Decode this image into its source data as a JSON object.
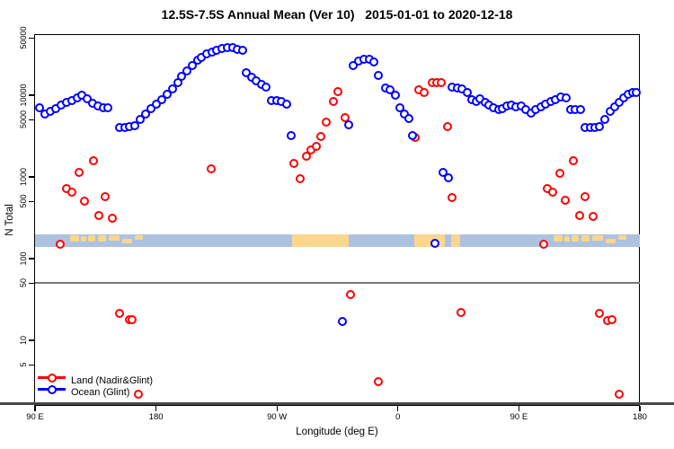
{
  "title": "12.5S-7.5S Annual Mean (Ver 10)   2015-01-01 to 2020-12-18",
  "legend": {
    "items": [
      {
        "label": "Land (Nadir&Glint)",
        "color": "#ff0000"
      },
      {
        "label": "Ocean (Glint)",
        "color": "#0000ff"
      }
    ]
  },
  "chart_data": {
    "type": "scatter",
    "title": "12.5S-7.5S Annual Mean (Ver 10)   2015-01-01 to 2020-12-18",
    "x_axis": {
      "label": "Longitude (deg E)",
      "scale": "linear",
      "range": [
        0,
        450
      ],
      "ticks": [
        {
          "pos": 0,
          "label": "90 E"
        },
        {
          "pos": 90,
          "label": "180"
        },
        {
          "pos": 180,
          "label": "90 W"
        },
        {
          "pos": 270,
          "label": "0"
        },
        {
          "pos": 360,
          "label": "90 E"
        },
        {
          "pos": 450,
          "label": "180"
        }
      ]
    },
    "y_axis": {
      "label": "N Total",
      "scale": "log10",
      "range": [
        1.55,
        55000
      ],
      "ticks": [
        {
          "value": 50000,
          "label": "50000"
        },
        {
          "value": 10000,
          "label": "10000"
        },
        {
          "value": 5000,
          "label": "5000"
        },
        {
          "value": 1000,
          "label": "1000"
        },
        {
          "value": 500,
          "label": "500"
        },
        {
          "value": 100,
          "label": "100"
        },
        {
          "value": 50,
          "label": "50"
        },
        {
          "value": 10,
          "label": "10"
        },
        {
          "value": 5,
          "label": "5"
        }
      ]
    },
    "reference_lines": [
      {
        "value": 50,
        "color": "#787878",
        "width": 2,
        "full_canvas": false
      },
      {
        "value": 1.66,
        "color": "#474747",
        "width": 3,
        "full_canvas": true
      }
    ],
    "map_band": {
      "top_value": 198,
      "bottom_value": 139,
      "ocean_color": "#adc2e0",
      "land_color": "#fbd68c",
      "land_segments": [
        {
          "from": 26.1,
          "to": 32.8,
          "h": 0.5,
          "dy": 0.08
        },
        {
          "from": 34.1,
          "to": 38.1,
          "h": 0.45,
          "dy": 0.12
        },
        {
          "from": 39.5,
          "to": 44.8,
          "h": 0.5,
          "dy": 0.05
        },
        {
          "from": 46.8,
          "to": 52.8,
          "h": 0.5,
          "dy": 0.1
        },
        {
          "from": 54.8,
          "to": 62.9,
          "h": 0.45,
          "dy": 0.08
        },
        {
          "from": 64.9,
          "to": 72.2,
          "h": 0.4,
          "dy": 0.35
        },
        {
          "from": 74.2,
          "to": 80.2,
          "h": 0.35,
          "dy": 0.1
        },
        {
          "from": 191.3,
          "to": 233.3,
          "h": 1,
          "dy": 0
        },
        {
          "from": 282.0,
          "to": 304.7,
          "h": 1,
          "dy": 0
        },
        {
          "from": 309.3,
          "to": 316.0,
          "h": 1,
          "dy": 0
        },
        {
          "from": 386.1,
          "to": 392.8,
          "h": 0.5,
          "dy": 0.08
        },
        {
          "from": 394.1,
          "to": 398.1,
          "h": 0.45,
          "dy": 0.12
        },
        {
          "from": 399.5,
          "to": 404.8,
          "h": 0.5,
          "dy": 0.05
        },
        {
          "from": 406.8,
          "to": 412.8,
          "h": 0.5,
          "dy": 0.1
        },
        {
          "from": 414.8,
          "to": 422.9,
          "h": 0.45,
          "dy": 0.08
        },
        {
          "from": 424.9,
          "to": 432.2,
          "h": 0.4,
          "dy": 0.35
        },
        {
          "from": 434.2,
          "to": 440.2,
          "h": 0.35,
          "dy": 0.1
        }
      ]
    },
    "series": [
      {
        "name": "Land (Nadir&Glint)",
        "color": "#ff0000",
        "marker": "open-circle",
        "points": [
          [
            18.7,
            151
          ],
          [
            23.3,
            720
          ],
          [
            27.3,
            650
          ],
          [
            32.7,
            1140
          ],
          [
            36.7,
            500
          ],
          [
            43.3,
            1590
          ],
          [
            47.3,
            340
          ],
          [
            52,
            570
          ],
          [
            57.3,
            316
          ],
          [
            131.3,
            1250
          ],
          [
            192.7,
            1480
          ],
          [
            197.3,
            960
          ],
          [
            202,
            1810
          ],
          [
            205.3,
            2150
          ],
          [
            209.3,
            2370
          ],
          [
            212.7,
            3160
          ],
          [
            216.7,
            4640
          ],
          [
            222,
            8370
          ],
          [
            225.3,
            11100
          ],
          [
            230.7,
            5260
          ],
          [
            282.7,
            3080
          ],
          [
            285.3,
            11700
          ],
          [
            289.3,
            10700
          ],
          [
            295.3,
            14100
          ],
          [
            298.7,
            14100
          ],
          [
            302,
            14100
          ],
          [
            306.7,
            4170
          ],
          [
            310,
            560
          ],
          [
            378.7,
            151
          ],
          [
            381.3,
            720
          ],
          [
            385.3,
            650
          ],
          [
            390.7,
            1110
          ],
          [
            394.7,
            520
          ],
          [
            400.7,
            1560
          ],
          [
            405.3,
            340
          ],
          [
            409.3,
            580
          ],
          [
            415.3,
            330
          ],
          [
            62.7,
            21.5
          ],
          [
            70,
            18.1
          ],
          [
            72,
            18.1
          ],
          [
            76.7,
            2.2
          ],
          [
            234.7,
            36
          ],
          [
            255.3,
            3.1
          ],
          [
            316.7,
            22
          ],
          [
            420,
            21.5
          ],
          [
            426,
            17.6
          ],
          [
            429.3,
            18.1
          ],
          [
            434.7,
            2.2
          ]
        ]
      },
      {
        "name": "Ocean (Glint)",
        "color": "#0000ff",
        "marker": "open-circle",
        "points": [
          [
            3.3,
            6980
          ],
          [
            7.3,
            5850
          ],
          [
            11.3,
            6310
          ],
          [
            15.3,
            6790
          ],
          [
            19.3,
            7550
          ],
          [
            23.3,
            8100
          ],
          [
            27.3,
            8570
          ],
          [
            31.3,
            9280
          ],
          [
            34.7,
            9990
          ],
          [
            38.7,
            9030
          ],
          [
            42.7,
            7900
          ],
          [
            46.7,
            7300
          ],
          [
            50.7,
            7000
          ],
          [
            54,
            7100
          ],
          [
            62.7,
            3980
          ],
          [
            66.7,
            4070
          ],
          [
            70,
            4170
          ],
          [
            74,
            4270
          ],
          [
            78,
            5010
          ],
          [
            82,
            5850
          ],
          [
            86,
            6800
          ],
          [
            90,
            7760
          ],
          [
            94,
            8770
          ],
          [
            98,
            10200
          ],
          [
            102,
            11800
          ],
          [
            106,
            14100
          ],
          [
            109.3,
            16900
          ],
          [
            113.3,
            19900
          ],
          [
            116.7,
            23300
          ],
          [
            120.7,
            26500
          ],
          [
            124,
            29300
          ],
          [
            128,
            31800
          ],
          [
            132,
            33500
          ],
          [
            135.3,
            35300
          ],
          [
            139.3,
            37200
          ],
          [
            143.3,
            38200
          ],
          [
            147.3,
            38200
          ],
          [
            150.7,
            36200
          ],
          [
            154.7,
            35300
          ],
          [
            157.3,
            18600
          ],
          [
            161.3,
            16700
          ],
          [
            164.7,
            15000
          ],
          [
            168.7,
            13500
          ],
          [
            172,
            12600
          ],
          [
            176,
            8570
          ],
          [
            180,
            8570
          ],
          [
            183.3,
            8370
          ],
          [
            187.3,
            7760
          ],
          [
            190.7,
            3240
          ],
          [
            228.7,
            17
          ],
          [
            233.3,
            4370
          ],
          [
            236.7,
            23300
          ],
          [
            240.7,
            25900
          ],
          [
            244.7,
            27200
          ],
          [
            248.7,
            27200
          ],
          [
            252,
            25300
          ],
          [
            255.3,
            17400
          ],
          [
            260.7,
            12200
          ],
          [
            264,
            11700
          ],
          [
            268,
            10000
          ],
          [
            271.3,
            7000
          ],
          [
            274.7,
            5850
          ],
          [
            278,
            5130
          ],
          [
            280.7,
            3240
          ],
          [
            297.3,
            155
          ],
          [
            303.3,
            1140
          ],
          [
            307.3,
            980
          ],
          [
            310,
            12600
          ],
          [
            314,
            12300
          ],
          [
            317.3,
            12000
          ],
          [
            321.3,
            10700
          ],
          [
            324.7,
            8770
          ],
          [
            328,
            8370
          ],
          [
            331.3,
            9000
          ],
          [
            334.7,
            8170
          ],
          [
            338,
            7550
          ],
          [
            341.3,
            7000
          ],
          [
            344.7,
            6680
          ],
          [
            348,
            6800
          ],
          [
            351.3,
            7350
          ],
          [
            354.7,
            7550
          ],
          [
            358,
            7200
          ],
          [
            362,
            7350
          ],
          [
            365.3,
            6680
          ],
          [
            369.3,
            5990
          ],
          [
            372.7,
            6680
          ],
          [
            376.7,
            7200
          ],
          [
            380,
            7760
          ],
          [
            384,
            8370
          ],
          [
            387.3,
            8770
          ],
          [
            391.3,
            9430
          ],
          [
            395.3,
            9220
          ],
          [
            398.7,
            6680
          ],
          [
            402,
            6680
          ],
          [
            406,
            6680
          ],
          [
            409.3,
            3980
          ],
          [
            413.3,
            3980
          ],
          [
            416.7,
            4070
          ],
          [
            420,
            4170
          ],
          [
            424,
            5010
          ],
          [
            428,
            6310
          ],
          [
            431.3,
            7200
          ],
          [
            434.7,
            8170
          ],
          [
            438,
            9280
          ],
          [
            441.3,
            10200
          ],
          [
            444.7,
            10700
          ],
          [
            447.3,
            10900
          ]
        ]
      }
    ]
  }
}
